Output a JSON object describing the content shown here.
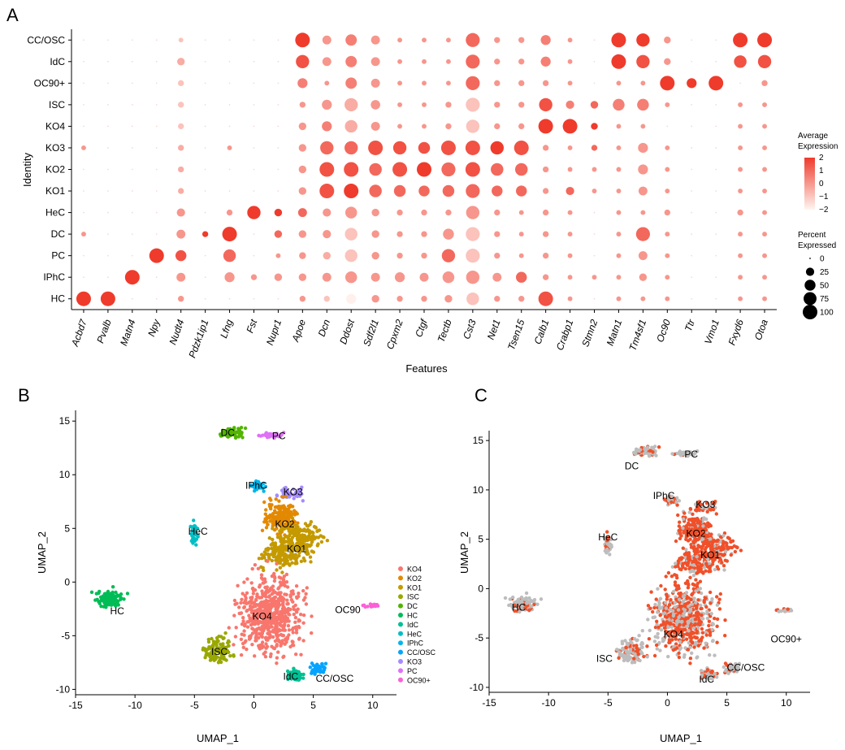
{
  "panels": {
    "a": "A",
    "b": "B",
    "c": "C"
  },
  "chart_data": [
    {
      "type": "scatter",
      "subtype": "dot-plot",
      "xlabel": "Features",
      "ylabel": "Identity",
      "genes": [
        "Acbd7",
        "Pvalb",
        "Matn4",
        "Npy",
        "Nudt4",
        "Pdzk1ip1",
        "Lfng",
        "Fst",
        "Nupr1",
        "Apoe",
        "Dcn",
        "Ddost",
        "Sdf2l1",
        "Cpxm2",
        "Ctgf",
        "Tectb",
        "Cst3",
        "Net1",
        "Tsen15",
        "Calb1",
        "Crabp1",
        "Stmn2",
        "Matn1",
        "Tm4sf1",
        "Oc90",
        "Ttr",
        "Vmo1",
        "Fxyd6",
        "Otoa"
      ],
      "identities": [
        "CC/OSC",
        "IdC",
        "OC90+",
        "ISC",
        "KO4",
        "KO3",
        "KO2",
        "KO1",
        "HeC",
        "DC",
        "PC",
        "IPhC",
        "HC"
      ],
      "pct": [
        [
          0,
          0,
          0,
          0,
          5,
          0,
          0,
          0,
          0,
          100,
          30,
          55,
          30,
          5,
          5,
          5,
          90,
          10,
          10,
          40,
          5,
          0,
          100,
          80,
          15,
          0,
          0,
          100,
          100
        ],
        [
          0,
          0,
          0,
          0,
          20,
          0,
          0,
          0,
          0,
          80,
          30,
          55,
          30,
          5,
          5,
          5,
          90,
          10,
          10,
          40,
          5,
          0,
          100,
          80,
          15,
          0,
          0,
          70,
          80
        ],
        [
          0,
          0,
          0,
          0,
          10,
          0,
          0,
          0,
          0,
          40,
          5,
          55,
          30,
          5,
          5,
          5,
          90,
          10,
          10,
          10,
          5,
          0,
          5,
          5,
          100,
          40,
          100,
          0,
          10
        ],
        [
          0,
          0,
          0,
          0,
          10,
          0,
          0,
          0,
          0,
          10,
          40,
          80,
          35,
          5,
          5,
          10,
          90,
          10,
          10,
          80,
          25,
          20,
          60,
          60,
          5,
          0,
          0,
          5,
          5
        ],
        [
          0,
          0,
          0,
          0,
          10,
          0,
          0,
          0,
          0,
          20,
          40,
          70,
          30,
          5,
          5,
          10,
          80,
          10,
          10,
          100,
          100,
          15,
          5,
          5,
          0,
          0,
          0,
          5,
          5
        ],
        [
          5,
          0,
          0,
          0,
          10,
          0,
          5,
          0,
          0,
          20,
          80,
          80,
          100,
          80,
          60,
          100,
          100,
          80,
          100,
          10,
          5,
          10,
          5,
          40,
          5,
          0,
          0,
          5,
          5
        ],
        [
          0,
          0,
          0,
          0,
          10,
          0,
          0,
          0,
          0,
          20,
          100,
          100,
          70,
          100,
          100,
          90,
          100,
          70,
          70,
          10,
          5,
          5,
          5,
          40,
          5,
          0,
          0,
          5,
          5
        ],
        [
          0,
          0,
          0,
          0,
          10,
          0,
          0,
          0,
          0,
          20,
          100,
          100,
          70,
          60,
          50,
          60,
          90,
          50,
          50,
          10,
          25,
          5,
          5,
          30,
          5,
          0,
          0,
          5,
          5
        ],
        [
          0,
          0,
          0,
          0,
          25,
          0,
          10,
          80,
          20,
          30,
          25,
          60,
          20,
          10,
          10,
          10,
          80,
          10,
          5,
          10,
          5,
          0,
          5,
          5,
          10,
          0,
          0,
          10,
          5
        ],
        [
          5,
          0,
          0,
          0,
          30,
          10,
          100,
          0,
          20,
          20,
          25,
          70,
          20,
          10,
          10,
          50,
          90,
          10,
          5,
          10,
          5,
          0,
          5,
          90,
          5,
          0,
          0,
          5,
          5
        ],
        [
          0,
          0,
          0,
          100,
          50,
          0,
          70,
          0,
          5,
          15,
          20,
          70,
          20,
          10,
          10,
          80,
          90,
          10,
          5,
          10,
          5,
          0,
          5,
          30,
          5,
          0,
          0,
          5,
          5
        ],
        [
          0,
          0,
          100,
          0,
          30,
          0,
          40,
          10,
          20,
          20,
          30,
          60,
          30,
          40,
          30,
          60,
          80,
          30,
          50,
          10,
          5,
          5,
          5,
          20,
          5,
          0,
          0,
          5,
          5
        ],
        [
          100,
          100,
          0,
          0,
          10,
          0,
          0,
          0,
          0,
          10,
          10,
          40,
          20,
          10,
          10,
          20,
          70,
          10,
          10,
          100,
          5,
          0,
          5,
          5,
          5,
          0,
          0,
          5,
          5
        ]
      ],
      "avg": [
        [
          0,
          0,
          0,
          0,
          -1,
          0,
          0,
          0,
          0,
          2,
          0,
          0.5,
          0,
          0,
          0,
          0,
          1,
          0,
          0,
          0.5,
          0,
          0,
          2,
          2,
          0,
          0,
          0,
          2,
          2
        ],
        [
          0,
          0,
          0,
          0,
          -0.5,
          0,
          0,
          0,
          0,
          1.5,
          0,
          0.5,
          0,
          0,
          0,
          0,
          1,
          0,
          0,
          0.5,
          0,
          0,
          2,
          1.5,
          0,
          0,
          0,
          1.5,
          1.5
        ],
        [
          0,
          0,
          0,
          0,
          -1,
          0,
          0,
          0,
          0,
          0.5,
          0,
          0.5,
          0,
          0,
          0,
          0,
          1,
          0,
          0,
          0,
          0,
          0,
          0,
          0,
          2,
          2,
          2,
          0,
          0
        ],
        [
          0,
          0,
          0,
          0,
          -1,
          0,
          0,
          0,
          0,
          0,
          0,
          -0.5,
          0,
          0,
          0,
          0,
          -1,
          0,
          0,
          1.5,
          0.5,
          1,
          0.5,
          0.5,
          0,
          0,
          0,
          0,
          0
        ],
        [
          0,
          0,
          0,
          0,
          -1,
          0,
          0,
          0,
          0,
          0,
          0.5,
          -0.5,
          0,
          0,
          0,
          0,
          -1,
          0,
          0,
          2,
          2,
          2,
          0,
          0,
          0,
          0,
          0,
          0,
          0
        ],
        [
          0,
          0,
          0,
          0,
          -0.5,
          0,
          0,
          0,
          0,
          0,
          1,
          1,
          1.5,
          1.5,
          1.5,
          1.5,
          1.5,
          2,
          1.5,
          0,
          0,
          1,
          0,
          0,
          0,
          0,
          0,
          0,
          0
        ],
        [
          0,
          0,
          0,
          0,
          -0.5,
          0,
          0,
          0,
          0,
          0,
          1.5,
          1.5,
          1,
          1.5,
          2,
          1,
          1.5,
          1,
          1,
          0,
          0,
          0,
          0,
          0,
          0,
          0,
          0,
          0,
          0
        ],
        [
          0,
          0,
          0,
          0,
          -0.5,
          0,
          0,
          0,
          0,
          0,
          1.5,
          2,
          1,
          1,
          1,
          1,
          1,
          1,
          1,
          0,
          1,
          0,
          0,
          0,
          0,
          0,
          0,
          0,
          0
        ],
        [
          0,
          0,
          0,
          0,
          0,
          0,
          0,
          2,
          2,
          1,
          0,
          0,
          0,
          0,
          0,
          0,
          0,
          0,
          0,
          0,
          0,
          0,
          0,
          0,
          0,
          0,
          0,
          0,
          0
        ],
        [
          0,
          0,
          0,
          0,
          0,
          2,
          2,
          0,
          1,
          0,
          0,
          -1,
          0,
          0,
          0,
          0,
          -1,
          0,
          0,
          0,
          0,
          0,
          0,
          1,
          0,
          0,
          0,
          0,
          0
        ],
        [
          0,
          0,
          0,
          2,
          1.5,
          0,
          1,
          0,
          0,
          0,
          -0.5,
          -1,
          0,
          0,
          0,
          1,
          -1,
          0,
          0,
          0,
          0,
          0,
          0,
          0,
          0,
          0,
          0,
          0,
          0
        ],
        [
          0,
          0,
          2,
          0,
          0,
          0,
          0,
          0,
          0,
          0,
          0,
          0,
          0,
          0,
          0,
          0,
          0,
          0,
          1,
          0,
          0,
          0,
          0,
          0,
          0,
          0,
          0,
          0,
          0
        ],
        [
          2,
          2,
          0,
          0,
          0,
          0,
          0,
          0,
          0,
          0,
          -1,
          -2,
          0,
          0,
          0,
          0,
          -1,
          0,
          0,
          1.5,
          0,
          0,
          0,
          0,
          0,
          0,
          0,
          0,
          0
        ]
      ],
      "legend_avg_title": [
        "Average",
        "Expression"
      ],
      "legend_avg_ticks": [
        "2",
        "1",
        "0",
        "−1",
        "−2"
      ],
      "legend_avg_values": [
        2,
        1,
        0,
        -1,
        -2
      ],
      "legend_pct_title": [
        "Percent",
        "Expressed"
      ],
      "legend_pct_ticks": [
        "0",
        "25",
        "50",
        "75",
        "100"
      ],
      "legend_pct_values": [
        0,
        25,
        50,
        75,
        100
      ]
    },
    {
      "type": "scatter",
      "subtype": "umap-clusters",
      "xlabel": "UMAP_1",
      "ylabel": "UMAP_2",
      "xlim": [
        -15,
        12
      ],
      "ylim": [
        -10.5,
        16
      ],
      "xticks": [
        -15,
        -10,
        -5,
        0,
        5,
        10
      ],
      "yticks": [
        -10,
        -5,
        0,
        5,
        10,
        15
      ],
      "tick_labels_x": [
        "-15",
        "-10",
        "-5",
        "0",
        "5",
        "10"
      ],
      "tick_labels_y": [
        "-10",
        "-5",
        "0",
        "5",
        "10",
        "15"
      ],
      "legend": [
        "KO4",
        "KO2",
        "KO1",
        "ISC",
        "DC",
        "HC",
        "IdC",
        "HeC",
        "IPhC",
        "CC/OSC",
        "KO3",
        "PC",
        "OC90+"
      ],
      "colors": {
        "KO4": "#F8766D",
        "KO2": "#E38900",
        "KO1": "#C49A00",
        "ISC": "#99A800",
        "DC": "#53B400",
        "HC": "#00BC56",
        "IdC": "#00C094",
        "HeC": "#00BFC4",
        "IPhC": "#00B6EB",
        "CC/OSC": "#06A4FF",
        "KO3": "#A58AFF",
        "PC": "#DF70F8",
        "OC90+": "#FB61D7"
      },
      "cluster_labels": [
        {
          "text": "DC",
          "x": -2.2,
          "y": 13.9
        },
        {
          "text": "PC",
          "x": 2.1,
          "y": 13.6
        },
        {
          "text": "IPhC",
          "x": 0.2,
          "y": 9.0
        },
        {
          "text": "KO3",
          "x": 3.3,
          "y": 8.4
        },
        {
          "text": "KO2",
          "x": 2.6,
          "y": 5.4
        },
        {
          "text": "KO1",
          "x": 3.6,
          "y": 3.1
        },
        {
          "text": "HeC",
          "x": -4.7,
          "y": 4.7
        },
        {
          "text": "HC",
          "x": -11.5,
          "y": -2.7
        },
        {
          "text": "KO4",
          "x": 0.7,
          "y": -3.2
        },
        {
          "text": "OC90",
          "x": 7.9,
          "y": -2.6
        },
        {
          "text": "ISC",
          "x": -2.9,
          "y": -6.5
        },
        {
          "text": "IdC",
          "x": 3.1,
          "y": -8.8
        },
        {
          "text": "CC/OSC",
          "x": 6.8,
          "y": -9.0
        }
      ]
    },
    {
      "type": "scatter",
      "subtype": "umap-feature",
      "xlabel": "UMAP_1",
      "ylabel": "UMAP_2",
      "xlim": [
        -15,
        12
      ],
      "ylim": [
        -10.5,
        16
      ],
      "xticks": [
        -15,
        -10,
        -5,
        0,
        5,
        10
      ],
      "yticks": [
        -10,
        -5,
        0,
        5,
        10,
        15
      ],
      "tick_labels_x": [
        "-15",
        "-10",
        "-5",
        "0",
        "5",
        "10"
      ],
      "tick_labels_y": [
        "-10",
        "-5",
        "0",
        "5",
        "10",
        "15"
      ],
      "colors": {
        "low": "#bdbdbd",
        "high": "#f0502a"
      },
      "cluster_labels": [
        {
          "text": "PC",
          "x": 2.0,
          "y": 13.6
        },
        {
          "text": "DC",
          "x": -3.0,
          "y": 12.4
        },
        {
          "text": "IPhC",
          "x": -0.3,
          "y": 9.4
        },
        {
          "text": "KO3",
          "x": 3.2,
          "y": 8.5
        },
        {
          "text": "KO2",
          "x": 2.4,
          "y": 5.6
        },
        {
          "text": "KO1",
          "x": 3.6,
          "y": 3.4
        },
        {
          "text": "HeC",
          "x": -5.0,
          "y": 5.2
        },
        {
          "text": "HC",
          "x": -12.5,
          "y": -1.9
        },
        {
          "text": "KO4",
          "x": 0.5,
          "y": -4.6
        },
        {
          "text": "OC90+",
          "x": 10.0,
          "y": -5.1
        },
        {
          "text": "ISC",
          "x": -5.3,
          "y": -7.1
        },
        {
          "text": "IdC",
          "x": 3.3,
          "y": -9.2
        },
        {
          "text": "CC/OSC",
          "x": 6.6,
          "y": -8.0
        }
      ]
    }
  ]
}
